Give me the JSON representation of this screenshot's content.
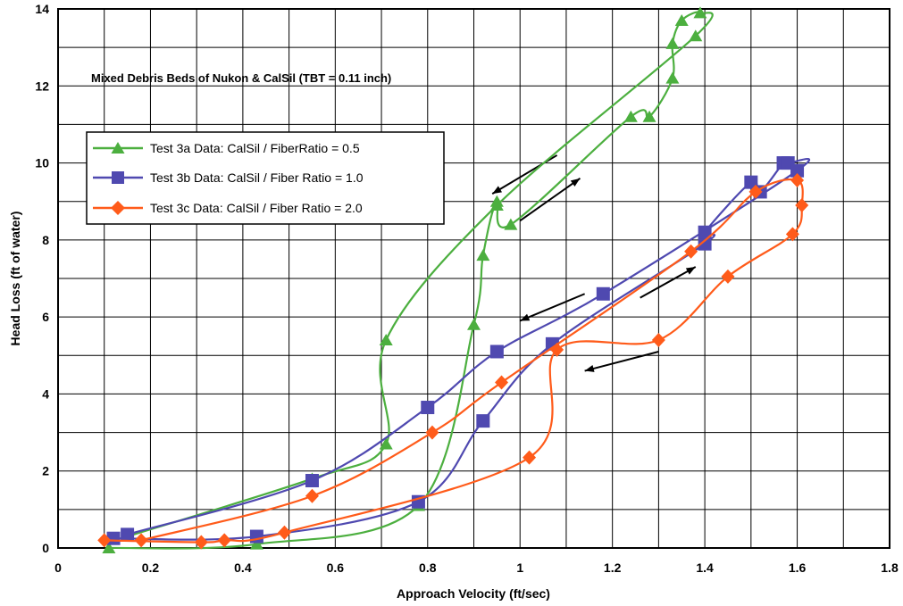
{
  "chart_data": {
    "type": "line",
    "title": "",
    "annotation": "Mixed Debris Beds of Nukon & CalSil (TBT = 0.11 inch)",
    "xlabel": "Approach Velocity (ft/sec)",
    "ylabel": "Head Loss (ft of water)",
    "xlim": [
      0,
      1.8
    ],
    "ylim": [
      0,
      14
    ],
    "xticks": [
      0,
      0.2,
      0.4,
      0.6,
      0.8,
      1,
      1.2,
      1.4,
      1.6,
      1.8
    ],
    "xtick_labels": [
      "0",
      "0.2",
      "0.4",
      "0.6",
      "0.8",
      "1",
      "1.2",
      "1.4",
      "1.6",
      "1.8"
    ],
    "yticks": [
      0,
      2,
      4,
      6,
      8,
      10,
      12,
      14
    ],
    "ytick_labels": [
      "0",
      "2",
      "4",
      "6",
      "8",
      "10",
      "12",
      "14"
    ],
    "grid": true,
    "legend_position": "upper-left",
    "series": [
      {
        "name": "Test 3a Data: CalSil / FiberRatio = 0.5",
        "color": "#4CAF3F",
        "marker": "triangle",
        "points": [
          [
            0.11,
            0.0
          ],
          [
            0.43,
            0.1
          ],
          [
            0.78,
            1.1
          ],
          [
            0.9,
            5.8
          ],
          [
            0.92,
            7.6
          ],
          [
            0.95,
            9.0
          ],
          [
            0.98,
            8.4
          ],
          [
            1.24,
            11.2
          ],
          [
            1.28,
            11.2
          ],
          [
            1.33,
            12.2
          ],
          [
            1.33,
            13.1
          ],
          [
            1.35,
            13.7
          ],
          [
            1.39,
            13.9
          ],
          [
            1.38,
            13.3
          ],
          [
            0.95,
            8.9
          ],
          [
            0.71,
            5.4
          ],
          [
            0.71,
            2.7
          ],
          [
            0.55,
            1.8
          ],
          [
            0.15,
            0.3
          ]
        ]
      },
      {
        "name": "Test 3b Data:  CalSil / Fiber Ratio = 1.0",
        "color": "#4F49B0",
        "marker": "square",
        "points": [
          [
            0.12,
            0.25
          ],
          [
            0.43,
            0.3
          ],
          [
            0.78,
            1.2
          ],
          [
            0.92,
            3.3
          ],
          [
            1.07,
            5.3
          ],
          [
            1.4,
            7.9
          ],
          [
            1.4,
            8.2
          ],
          [
            1.5,
            9.5
          ],
          [
            1.52,
            9.25
          ],
          [
            1.57,
            10.0
          ],
          [
            1.58,
            10.0
          ],
          [
            1.6,
            9.8
          ],
          [
            1.18,
            6.6
          ],
          [
            0.95,
            5.1
          ],
          [
            0.8,
            3.65
          ],
          [
            0.55,
            1.75
          ],
          [
            0.15,
            0.35
          ]
        ]
      },
      {
        "name": "Test 3c Data:  CalSil / Fiber Ratio = 2.0",
        "color": "#FF5B1A",
        "marker": "diamond",
        "points": [
          [
            0.1,
            0.2
          ],
          [
            0.31,
            0.15
          ],
          [
            0.36,
            0.2
          ],
          [
            0.49,
            0.4
          ],
          [
            1.02,
            2.35
          ],
          [
            1.08,
            5.15
          ],
          [
            1.3,
            5.4
          ],
          [
            1.45,
            7.05
          ],
          [
            1.59,
            8.15
          ],
          [
            1.61,
            8.9
          ],
          [
            1.6,
            9.55
          ],
          [
            1.51,
            9.25
          ],
          [
            1.37,
            7.7
          ],
          [
            0.96,
            4.3
          ],
          [
            0.81,
            3.0
          ],
          [
            0.55,
            1.35
          ],
          [
            0.18,
            0.2
          ]
        ]
      }
    ]
  }
}
